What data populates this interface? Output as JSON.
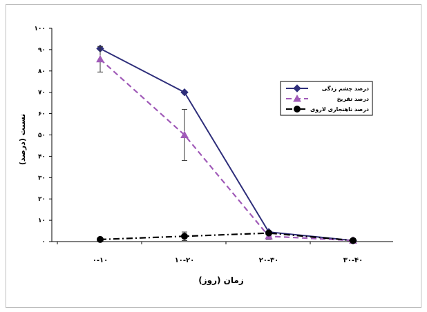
{
  "chart_data": {
    "type": "line",
    "categories": [
      "۰-۱۰",
      "۱۰-۲۰",
      "۲۰-۳۰",
      "۳۰-۴۰"
    ],
    "series": [
      {
        "name": "درصد چشم زدگی",
        "values": [
          90.5,
          70,
          4.5,
          0.5
        ],
        "color": "#2e2e7a",
        "dash": "solid",
        "marker": "diamond"
      },
      {
        "name": "درصد تفریخ",
        "values": [
          85.5,
          50,
          2.5,
          0.5
        ],
        "color": "#a05ab8",
        "dash": "dashed",
        "marker": "triangle",
        "error": [
          6,
          12,
          1.5,
          0
        ]
      },
      {
        "name": "درصد ناهنجاری لاروی",
        "values": [
          1,
          2.5,
          4,
          0.5
        ],
        "color": "#000000",
        "dash": "dashdot",
        "marker": "circle",
        "error": [
          0,
          2,
          0,
          0
        ]
      }
    ],
    "ylim": [
      0,
      100
    ],
    "yticks": [
      0,
      10,
      20,
      30,
      40,
      50,
      60,
      70,
      80,
      90,
      100
    ],
    "ytick_labels": [
      "۰",
      "۱۰",
      "۲۰",
      "۳۰",
      "۴۰",
      "۵۰",
      "۶۰",
      "۷۰",
      "۸۰",
      "۹۰",
      "۱۰۰"
    ],
    "xlabel": "زمان (روز)",
    "ylabel": "نسبت (درصد)",
    "legend": "right",
    "grid": false
  }
}
